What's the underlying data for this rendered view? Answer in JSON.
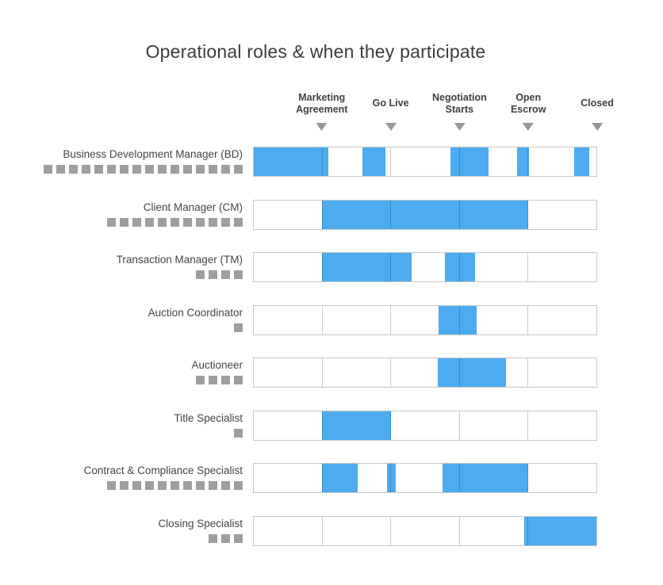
{
  "chart_data": {
    "type": "gantt",
    "title": "Operational roles & when they participate",
    "xlabel": "",
    "ylabel": "",
    "timeline_range_pct": [
      0,
      100
    ],
    "grid": true,
    "milestones": [
      {
        "label": "Marketing Agreement",
        "lines": [
          "Marketing",
          "Agreement"
        ],
        "position_pct": 20
      },
      {
        "label": "Go Live",
        "lines": [
          "Go Live"
        ],
        "position_pct": 40
      },
      {
        "label": "Negotiation Starts",
        "lines": [
          "Negotiation",
          "Starts"
        ],
        "position_pct": 60
      },
      {
        "label": "Open Escrow",
        "lines": [
          "Open",
          "Escrow"
        ],
        "position_pct": 80
      },
      {
        "label": "Closed",
        "lines": [
          "Closed"
        ],
        "position_pct": 100
      }
    ],
    "roles": [
      {
        "name": "Business Development Manager (BD)",
        "workload_squares": 16,
        "participation_pct": [
          [
            0,
            21.7
          ],
          [
            31.7,
            38.4
          ],
          [
            57.4,
            68.6
          ],
          [
            76.9,
            80.4
          ],
          [
            93.5,
            98.0
          ]
        ]
      },
      {
        "name": "Client Manager (CM)",
        "workload_squares": 11,
        "participation_pct": [
          [
            20,
            80
          ]
        ]
      },
      {
        "name": "Transaction Manager (TM)",
        "workload_squares": 4,
        "participation_pct": [
          [
            20,
            46
          ],
          [
            55.7,
            64.7
          ]
        ]
      },
      {
        "name": "Auction Coordinator",
        "workload_squares": 1,
        "participation_pct": [
          [
            54,
            65
          ]
        ]
      },
      {
        "name": "Auctioneer",
        "workload_squares": 4,
        "participation_pct": [
          [
            53.6,
            73.7
          ]
        ]
      },
      {
        "name": "Title Specialist",
        "workload_squares": 1,
        "participation_pct": [
          [
            20,
            40
          ]
        ]
      },
      {
        "name": "Contract & Compliance Specialist",
        "workload_squares": 11,
        "participation_pct": [
          [
            20,
            30.4
          ],
          [
            39,
            41.5
          ],
          [
            55,
            80
          ]
        ]
      },
      {
        "name": "Closing Specialist",
        "workload_squares": 3,
        "participation_pct": [
          [
            79,
            100
          ]
        ]
      }
    ],
    "colors": {
      "bar": "#4dacef",
      "workload_square": "#9e9e9e",
      "milestone_marker": "#999999",
      "track_border": "#c8c8c8",
      "title_text": "#3c3c3c",
      "label_text": "#454545",
      "milestone_text": "#404040"
    },
    "legend": null
  }
}
